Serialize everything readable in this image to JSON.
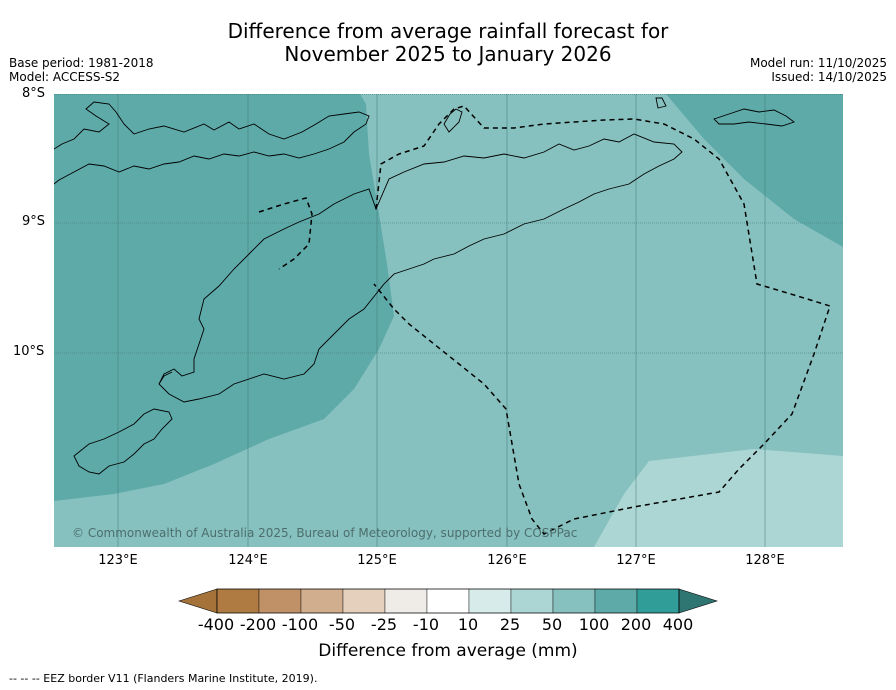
{
  "header": {
    "title_line1": "Difference from average rainfall forecast for",
    "title_line2": "November 2025 to January 2026",
    "base_period": "Base period: 1981-2018",
    "model": "Model: ACCESS-S2",
    "model_run": "Model run: 11/10/2025",
    "issued": "Issued: 14/10/2025"
  },
  "map": {
    "lat_labels": [
      "8°S",
      "9°S",
      "10°S"
    ],
    "lon_labels": [
      "123°E",
      "124°E",
      "125°E",
      "126°E",
      "127°E",
      "128°E"
    ],
    "copyright": "© Commonwealth of Australia 2025, Bureau of Meteorology, supported by COSPPac",
    "zone_colors": {
      "band_100_200": "#5eaaa9",
      "band_50_100": "#86c1bf",
      "band_25_50": "#acd6d4"
    }
  },
  "colorbar": {
    "labels": [
      "-400",
      "-200",
      "-100",
      "-50",
      "-25",
      "-10",
      "10",
      "25",
      "50",
      "100",
      "200",
      "400"
    ],
    "colors": [
      "#a5733a",
      "#b07b42",
      "#c09166",
      "#d1af8e",
      "#e4d0bd",
      "#efebe6",
      "#ffffff",
      "#d6ebea",
      "#acd6d4",
      "#86c1bf",
      "#5eaaa9",
      "#319d98",
      "#2f7672"
    ],
    "title": "Difference from average (mm)"
  },
  "footnote": "--  --  -- EEZ border V11 (Flanders Marine Institute, 2019)."
}
